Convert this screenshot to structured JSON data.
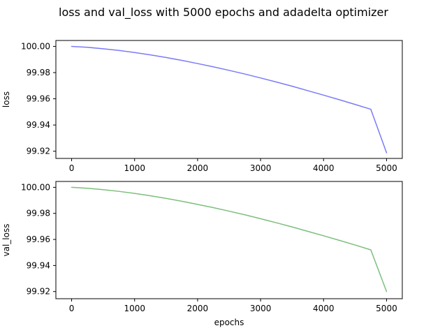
{
  "figure": {
    "title": "loss and val_loss with 5000 epochs and adadelta optimizer"
  },
  "chart_data": [
    {
      "type": "line",
      "xlabel": "",
      "ylabel": "loss",
      "xlim": [
        -250,
        5250
      ],
      "ylim": [
        99.9145,
        100.0045
      ],
      "xticks": [
        0,
        1000,
        2000,
        3000,
        4000,
        5000
      ],
      "xtick_labels": [
        "0",
        "1000",
        "2000",
        "3000",
        "4000",
        "5000"
      ],
      "yticks": [
        99.92,
        99.94,
        99.96,
        99.98,
        100.0
      ],
      "ytick_labels": [
        "99.92",
        "99.94",
        "99.96",
        "99.98",
        "100.00"
      ],
      "grid": false,
      "series": [
        {
          "color": "#7b7bf7",
          "x": [
            0,
            250,
            500,
            750,
            1000,
            1250,
            1500,
            1750,
            2000,
            2250,
            2500,
            2750,
            3000,
            3250,
            3500,
            3750,
            4000,
            4250,
            4500,
            4750,
            5000
          ],
          "y": [
            100.0,
            99.9993,
            99.9982,
            99.9969,
            99.9953,
            99.9935,
            99.9915,
            99.9893,
            99.9869,
            99.9844,
            99.9817,
            99.9789,
            99.9759,
            99.9728,
            99.9696,
            99.9662,
            99.9628,
            99.9593,
            99.9557,
            99.952,
            99.9188
          ]
        }
      ]
    },
    {
      "type": "line",
      "xlabel": "epochs",
      "ylabel": "val_loss",
      "xlim": [
        -250,
        5250
      ],
      "ylim": [
        99.9145,
        100.0045
      ],
      "xticks": [
        0,
        1000,
        2000,
        3000,
        4000,
        5000
      ],
      "xtick_labels": [
        "0",
        "1000",
        "2000",
        "3000",
        "4000",
        "5000"
      ],
      "yticks": [
        99.92,
        99.94,
        99.96,
        99.98,
        100.0
      ],
      "ytick_labels": [
        "99.92",
        "99.94",
        "99.96",
        "99.98",
        "100.00"
      ],
      "grid": false,
      "series": [
        {
          "color": "#7cbf7c",
          "x": [
            0,
            250,
            500,
            750,
            1000,
            1250,
            1500,
            1750,
            2000,
            2250,
            2500,
            2750,
            3000,
            3250,
            3500,
            3750,
            4000,
            4250,
            4500,
            4750,
            5000
          ],
          "y": [
            100.0,
            99.9993,
            99.9982,
            99.9969,
            99.9953,
            99.9935,
            99.9915,
            99.9893,
            99.9869,
            99.9844,
            99.9817,
            99.9789,
            99.9759,
            99.9728,
            99.9696,
            99.9662,
            99.9628,
            99.9593,
            99.9557,
            99.952,
            99.92
          ]
        }
      ]
    }
  ]
}
